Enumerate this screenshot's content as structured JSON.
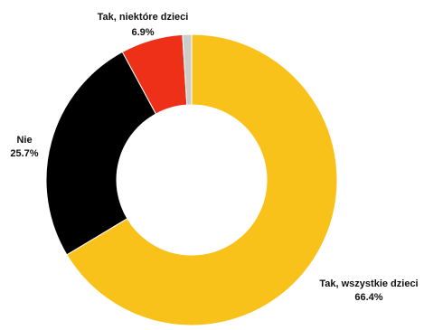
{
  "chart_data": {
    "type": "pie",
    "variant": "donut",
    "title": "",
    "slices": [
      {
        "label": "Tak, wszystkie dzieci",
        "value": 66.4,
        "display": "66.4%",
        "color": "#F9C21B"
      },
      {
        "label": "Nie",
        "value": 25.7,
        "display": "25.7%",
        "color": "#000000"
      },
      {
        "label": "Tak, niektóre dzieci",
        "value": 6.9,
        "display": "6.9%",
        "color": "#EE3018"
      },
      {
        "label": "",
        "value": 1.0,
        "display": "",
        "color": "#CCCCCC"
      }
    ],
    "start": "top",
    "direction": "clockwise",
    "legend": "none"
  }
}
